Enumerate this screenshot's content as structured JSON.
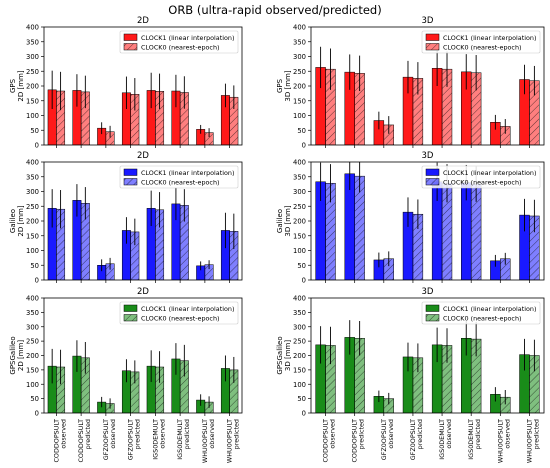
{
  "figure": {
    "suptitle": "ORB (ultra-rapid observed/predicted)"
  },
  "categories": [
    "CODDOPSULT observed",
    "CODDOPSULT predicted",
    "GFZ0OPSULT observed",
    "GFZ0OPSULT predicted",
    "IGS0DEMULT observed",
    "IGS0DEMULT predicted",
    "WHU0OPSULT observed",
    "WHU0OPSULT predicted"
  ],
  "colors": {
    "GPS": "#ff0000",
    "Galileo": "#0000ff",
    "GPSGalileo": "#008000"
  },
  "chart_data": [
    {
      "type": "bar",
      "title": "2D",
      "ylabel": "GPS\n2D [mm]",
      "system": "GPS",
      "ylim": [
        0,
        400
      ],
      "series": [
        {
          "name": "CLOCK1 (linear interpolation)",
          "hatch": false,
          "values": [
            187,
            185,
            57,
            177,
            185,
            183,
            53,
            168
          ],
          "error": [
            65,
            55,
            20,
            55,
            60,
            55,
            15,
            40
          ]
        },
        {
          "name": "CLOCK0 (nearest-epoch)",
          "hatch": true,
          "values": [
            183,
            180,
            45,
            172,
            182,
            178,
            42,
            162
          ],
          "error": [
            65,
            55,
            20,
            55,
            60,
            55,
            15,
            40
          ]
        }
      ]
    },
    {
      "type": "bar",
      "title": "3D",
      "ylabel": "GPS\n3D [mm]",
      "system": "GPS",
      "ylim": [
        0,
        400
      ],
      "series": [
        {
          "name": "CLOCK1 (linear interpolation)",
          "hatch": false,
          "values": [
            263,
            247,
            83,
            230,
            260,
            248,
            77,
            222
          ],
          "error": [
            70,
            60,
            30,
            55,
            60,
            60,
            25,
            50
          ]
        },
        {
          "name": "CLOCK0 (nearest-epoch)",
          "hatch": true,
          "values": [
            257,
            243,
            68,
            226,
            257,
            245,
            63,
            218
          ],
          "error": [
            70,
            60,
            30,
            55,
            60,
            60,
            25,
            50
          ]
        }
      ]
    },
    {
      "type": "bar",
      "title": "2D",
      "ylabel": "Galileo\n2D [mm]",
      "system": "Galileo",
      "ylim": [
        0,
        400
      ],
      "series": [
        {
          "name": "CLOCK1 (linear interpolation)",
          "hatch": false,
          "values": [
            243,
            270,
            50,
            168,
            243,
            258,
            48,
            168
          ],
          "error": [
            65,
            55,
            20,
            45,
            60,
            55,
            15,
            60
          ]
        },
        {
          "name": "CLOCK0 (nearest-epoch)",
          "hatch": true,
          "values": [
            240,
            260,
            55,
            163,
            238,
            253,
            52,
            165
          ],
          "error": [
            65,
            55,
            20,
            45,
            60,
            55,
            15,
            60
          ]
        }
      ]
    },
    {
      "type": "bar",
      "title": "3D",
      "ylabel": "Galileo\n3D [mm]",
      "system": "Galileo",
      "ylim": [
        0,
        400
      ],
      "series": [
        {
          "name": "CLOCK1 (linear interpolation)",
          "hatch": false,
          "values": [
            333,
            360,
            68,
            230,
            333,
            330,
            65,
            220
          ],
          "error": [
            65,
            55,
            25,
            50,
            65,
            60,
            20,
            55
          ]
        },
        {
          "name": "CLOCK0 (nearest-epoch)",
          "hatch": true,
          "values": [
            328,
            352,
            72,
            223,
            328,
            325,
            72,
            217
          ],
          "error": [
            65,
            55,
            25,
            50,
            65,
            60,
            20,
            55
          ]
        }
      ]
    },
    {
      "type": "bar",
      "title": "2D",
      "ylabel": "GPSGalileo\n2D [mm]",
      "system": "GPSGalileo",
      "ylim": [
        0,
        400
      ],
      "series": [
        {
          "name": "CLOCK1 (linear interpolation)",
          "hatch": false,
          "values": [
            163,
            198,
            38,
            147,
            163,
            188,
            45,
            155
          ],
          "error": [
            60,
            55,
            18,
            40,
            55,
            55,
            20,
            45
          ]
        },
        {
          "name": "CLOCK0 (nearest-epoch)",
          "hatch": true,
          "values": [
            160,
            192,
            33,
            143,
            160,
            182,
            38,
            150
          ],
          "error": [
            60,
            55,
            18,
            40,
            55,
            55,
            20,
            45
          ]
        }
      ]
    },
    {
      "type": "bar",
      "title": "3D",
      "ylabel": "GPSGalileo\n3D [mm]",
      "system": "GPSGalileo",
      "ylim": [
        0,
        400
      ],
      "series": [
        {
          "name": "CLOCK1 (linear interpolation)",
          "hatch": false,
          "values": [
            237,
            263,
            58,
            195,
            237,
            260,
            65,
            203
          ],
          "error": [
            65,
            60,
            20,
            50,
            60,
            60,
            25,
            55
          ]
        },
        {
          "name": "CLOCK0 (nearest-epoch)",
          "hatch": true,
          "values": [
            235,
            260,
            50,
            192,
            235,
            257,
            55,
            200
          ],
          "error": [
            65,
            60,
            20,
            50,
            60,
            60,
            25,
            55
          ]
        }
      ]
    }
  ]
}
